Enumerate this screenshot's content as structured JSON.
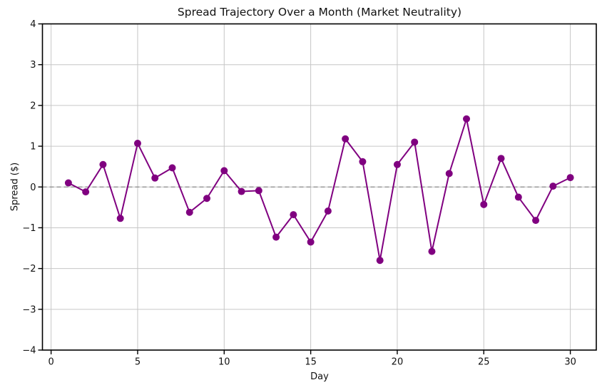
{
  "chart_data": {
    "type": "line",
    "title": "Spread Trajectory Over a Month (Market Neutrality)",
    "xlabel": "Day",
    "ylabel": "Spread ($)",
    "x": [
      1,
      2,
      3,
      4,
      5,
      6,
      7,
      8,
      9,
      10,
      11,
      12,
      13,
      14,
      15,
      16,
      17,
      18,
      19,
      20,
      21,
      22,
      23,
      24,
      25,
      26,
      27,
      28,
      29,
      30
    ],
    "series": [
      {
        "name": "Spread",
        "values": [
          0.1,
          -0.12,
          0.55,
          -0.77,
          1.07,
          0.22,
          0.47,
          -0.62,
          -0.28,
          0.4,
          -0.11,
          -0.09,
          -1.23,
          -0.68,
          -1.35,
          -0.59,
          1.18,
          0.62,
          -1.8,
          0.55,
          1.1,
          -1.58,
          0.33,
          1.67,
          -0.43,
          0.7,
          -0.25,
          -0.82,
          0.02,
          0.23
        ]
      }
    ],
    "xlim": [
      -0.5,
      31.5
    ],
    "ylim": [
      -4,
      4
    ],
    "xticks": [
      0,
      5,
      10,
      15,
      20,
      25,
      30
    ],
    "yticks": [
      -4,
      -3,
      -2,
      -1,
      0,
      1,
      2,
      3,
      4
    ],
    "grid": true,
    "legend_position": "none",
    "zero_line": {
      "y": 0,
      "style": "dashed"
    },
    "marker": "circle",
    "colors": {
      "line": "#800080",
      "grid": "#c6c6c6",
      "zero_line": "#8c8c8c",
      "axis": "#000000",
      "text": "#111111",
      "background": "#ffffff"
    }
  }
}
